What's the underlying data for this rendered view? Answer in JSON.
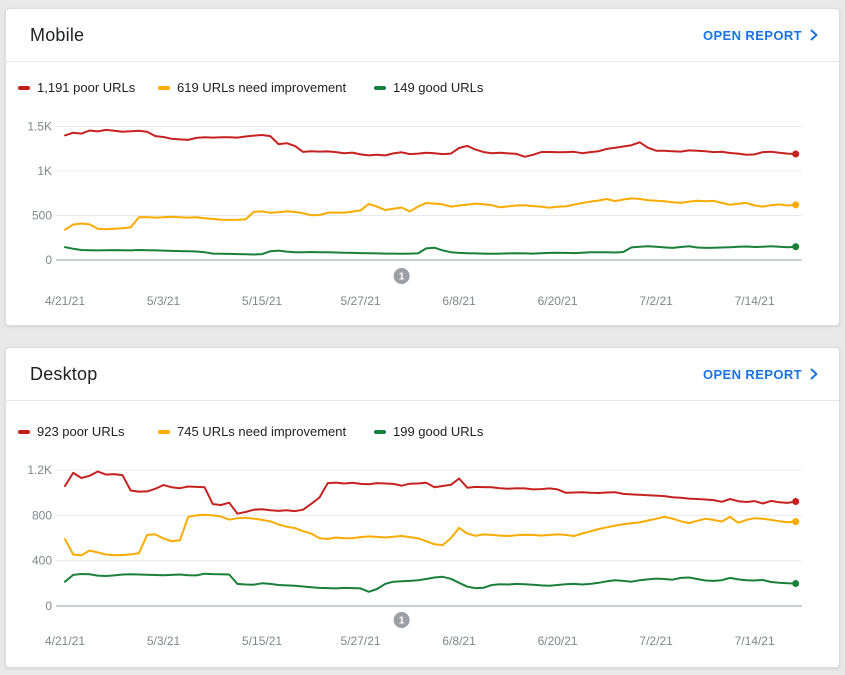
{
  "page_background": "#e8e8e8",
  "colors": {
    "poor": "#c5221f",
    "needs_improvement": "#f9ab00",
    "good": "#188038",
    "link": "#1a73e8",
    "axis_label": "#80868b",
    "gridline": "#e9eaec",
    "axis_line": "#9aa0a6",
    "annotation": "#9aa0a6"
  },
  "cards": [
    {
      "title": "Mobile",
      "open_report_label": "OPEN REPORT",
      "legend": [
        {
          "label": "1,191 poor URLs",
          "color": "#c5221f"
        },
        {
          "label": "619 URLs need improvement",
          "color": "#f9ab00"
        },
        {
          "label": "149 good URLs",
          "color": "#188038"
        }
      ],
      "chart_data": {
        "type": "line",
        "title": "Mobile",
        "grid": true,
        "legend_position": "top",
        "x_tick_labels": [
          "4/21/21",
          "5/3/21",
          "5/15/21",
          "5/27/21",
          "6/8/21",
          "6/20/21",
          "7/2/21",
          "7/14/21"
        ],
        "x_tick_days": [
          0,
          12,
          24,
          36,
          48,
          60,
          72,
          84
        ],
        "y_ticks": [
          {
            "label": "0",
            "value": 0
          },
          {
            "label": "500",
            "value": 500
          },
          {
            "label": "1K",
            "value": 1000
          },
          {
            "label": "1.5K",
            "value": 1500
          }
        ],
        "ylim": [
          0,
          1600
        ],
        "annotations": [
          {
            "label": "1",
            "day": 41
          }
        ],
        "series": [
          {
            "name": "poor URLs",
            "color": "#c5221f",
            "current": 1191,
            "values": [
              1400,
              1430,
              1420,
              1455,
              1445,
              1462,
              1452,
              1440,
              1447,
              1452,
              1440,
              1392,
              1382,
              1362,
              1355,
              1350,
              1372,
              1380,
              1375,
              1380,
              1380,
              1375,
              1388,
              1398,
              1405,
              1392,
              1302,
              1312,
              1282,
              1215,
              1222,
              1218,
              1220,
              1212,
              1200,
              1207,
              1187,
              1175,
              1182,
              1175,
              1198,
              1210,
              1190,
              1196,
              1205,
              1200,
              1190,
              1196,
              1258,
              1282,
              1240,
              1212,
              1200,
              1205,
              1198,
              1192,
              1160,
              1182,
              1212,
              1215,
              1210,
              1212,
              1216,
              1200,
              1212,
              1222,
              1248,
              1262,
              1275,
              1290,
              1322,
              1262,
              1228,
              1228,
              1222,
              1218,
              1232,
              1228,
              1222,
              1212,
              1216,
              1202,
              1196,
              1182,
              1186,
              1212,
              1216,
              1206,
              1196,
              1191
            ]
          },
          {
            "name": "URLs need improvement",
            "color": "#f9ab00",
            "current": 619,
            "values": [
              340,
              398,
              410,
              400,
              352,
              346,
              350,
              356,
              366,
              480,
              482,
              476,
              480,
              486,
              480,
              476,
              480,
              470,
              462,
              452,
              450,
              452,
              456,
              540,
              546,
              532,
              536,
              546,
              540,
              526,
              502,
              506,
              530,
              534,
              530,
              544,
              558,
              630,
              600,
              562,
              576,
              590,
              545,
              600,
              640,
              634,
              626,
              600,
              612,
              622,
              634,
              626,
              616,
              592,
              602,
              612,
              616,
              606,
              600,
              588,
              600,
              602,
              622,
              640,
              656,
              668,
              685,
              662,
              680,
              692,
              686,
              672,
              666,
              660,
              650,
              642,
              656,
              666,
              660,
              664,
              642,
              620,
              632,
              642,
              612,
              600,
              616,
              625,
              612,
              619
            ]
          },
          {
            "name": "good URLs",
            "color": "#188038",
            "current": 149,
            "values": [
              145,
              126,
              112,
              110,
              108,
              110,
              111,
              110,
              108,
              112,
              110,
              108,
              106,
              102,
              100,
              98,
              95,
              88,
              72,
              70,
              68,
              66,
              64,
              62,
              66,
              98,
              106,
              94,
              86,
              88,
              90,
              88,
              86,
              84,
              82,
              80,
              78,
              76,
              74,
              72,
              72,
              70,
              72,
              74,
              130,
              138,
              108,
              88,
              80,
              76,
              74,
              72,
              70,
              72,
              74,
              76,
              74,
              72,
              76,
              80,
              82,
              80,
              78,
              82,
              86,
              88,
              86,
              84,
              90,
              142,
              150,
              154,
              148,
              142,
              136,
              146,
              154,
              140,
              136,
              138,
              140,
              144,
              148,
              152,
              146,
              150,
              154,
              148,
              144,
              149
            ]
          }
        ]
      }
    },
    {
      "title": "Desktop",
      "open_report_label": "OPEN REPORT",
      "legend": [
        {
          "label": "923 poor URLs",
          "color": "#c5221f"
        },
        {
          "label": "745 URLs need improvement",
          "color": "#f9ab00"
        },
        {
          "label": "199 good URLs",
          "color": "#188038"
        }
      ],
      "chart_data": {
        "type": "line",
        "title": "Desktop",
        "grid": true,
        "legend_position": "top",
        "x_tick_labels": [
          "4/21/21",
          "5/3/21",
          "5/15/21",
          "5/27/21",
          "6/8/21",
          "6/20/21",
          "7/2/21",
          "7/14/21"
        ],
        "x_tick_days": [
          0,
          12,
          24,
          36,
          48,
          60,
          72,
          84
        ],
        "y_ticks": [
          {
            "label": "0",
            "value": 0
          },
          {
            "label": "400",
            "value": 400
          },
          {
            "label": "800",
            "value": 800
          },
          {
            "label": "1.2K",
            "value": 1200
          }
        ],
        "ylim": [
          0,
          1280
        ],
        "annotations": [
          {
            "label": "1",
            "day": 41
          }
        ],
        "series": [
          {
            "name": "poor URLs",
            "color": "#c5221f",
            "current": 923,
            "values": [
              1060,
              1175,
              1130,
              1150,
              1188,
              1160,
              1165,
              1155,
              1020,
              1010,
              1012,
              1035,
              1068,
              1048,
              1040,
              1055,
              1052,
              1048,
              900,
              892,
              912,
              815,
              830,
              850,
              855,
              845,
              840,
              845,
              838,
              850,
              902,
              958,
              1085,
              1090,
              1082,
              1088,
              1078,
              1075,
              1085,
              1082,
              1078,
              1062,
              1080,
              1082,
              1088,
              1048,
              1060,
              1070,
              1125,
              1045,
              1052,
              1050,
              1048,
              1040,
              1035,
              1040,
              1038,
              1030,
              1032,
              1038,
              1030,
              1000,
              1002,
              1005,
              1000,
              998,
              1002,
              1005,
              990,
              985,
              982,
              978,
              975,
              970,
              960,
              955,
              948,
              945,
              940,
              935,
              920,
              945,
              925,
              918,
              926,
              905,
              928,
              916,
              910,
              923
            ]
          },
          {
            "name": "URLs need improvement",
            "color": "#f9ab00",
            "current": 745,
            "values": [
              590,
              455,
              448,
              490,
              472,
              455,
              448,
              450,
              456,
              466,
              628,
              632,
              596,
              572,
              580,
              788,
              800,
              805,
              800,
              790,
              762,
              775,
              780,
              772,
              760,
              748,
              720,
              700,
              688,
              660,
              640,
              598,
              592,
              605,
              598,
              600,
              608,
              615,
              610,
              605,
              612,
              618,
              608,
              598,
              572,
              545,
              538,
              600,
              690,
              640,
              620,
              632,
              628,
              622,
              618,
              625,
              630,
              628,
              622,
              628,
              632,
              628,
              618,
              640,
              660,
              680,
              695,
              710,
              722,
              730,
              738,
              755,
              770,
              788,
              772,
              748,
              732,
              752,
              770,
              760,
              745,
              788,
              735,
              760,
              775,
              770,
              760,
              748,
              740,
              745
            ]
          },
          {
            "name": "good URLs",
            "color": "#188038",
            "current": 199,
            "values": [
              215,
              275,
              283,
              280,
              268,
              265,
              270,
              278,
              280,
              278,
              276,
              274,
              272,
              275,
              278,
              272,
              270,
              285,
              282,
              280,
              278,
              195,
              190,
              188,
              200,
              195,
              185,
              182,
              178,
              172,
              165,
              160,
              158,
              155,
              160,
              158,
              155,
              125,
              150,
              195,
              215,
              218,
              222,
              228,
              238,
              252,
              258,
              240,
              205,
              170,
              158,
              162,
              185,
              192,
              190,
              195,
              192,
              188,
              182,
              178,
              185,
              192,
              195,
              190,
              195,
              205,
              218,
              228,
              222,
              215,
              228,
              235,
              242,
              238,
              232,
              248,
              252,
              238,
              225,
              222,
              228,
              248,
              235,
              228,
              225,
              230,
              212,
              205,
              200,
              199
            ]
          }
        ]
      }
    }
  ]
}
